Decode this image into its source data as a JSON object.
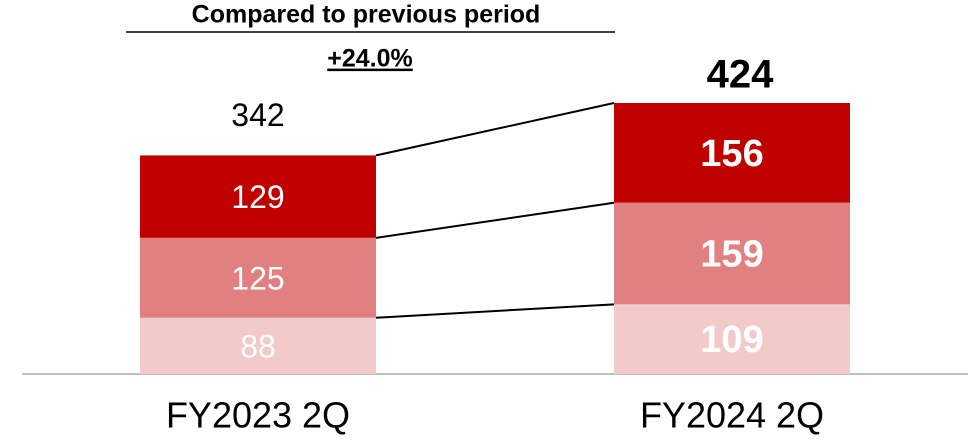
{
  "chart_data": {
    "type": "stacked-bar",
    "annotation": {
      "title": "Compared to previous period",
      "change": "+24.0%"
    },
    "categories": [
      "FY2023 2Q",
      "FY2024 2Q"
    ],
    "totals": [
      342,
      424
    ],
    "series": [
      {
        "color": "#f2caca",
        "values": [
          88,
          109
        ]
      },
      {
        "color": "#e08080",
        "values": [
          125,
          159
        ]
      },
      {
        "color": "#c00000",
        "values": [
          129,
          156
        ]
      }
    ]
  }
}
